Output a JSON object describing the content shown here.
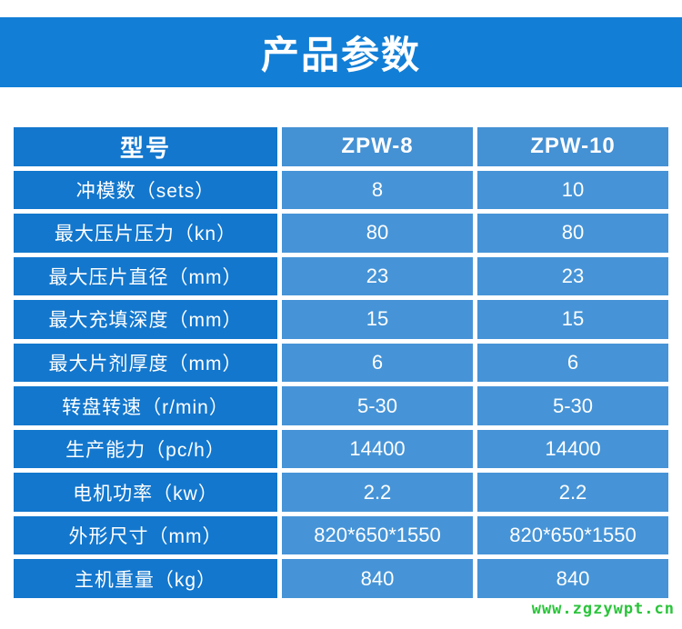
{
  "header": {
    "title": "产品参数",
    "banner_color": "#127ED6"
  },
  "table": {
    "header": {
      "model_label": "型号",
      "columns": [
        "ZPW-8",
        "ZPW-10"
      ]
    },
    "rows": [
      {
        "label": "冲模数（sets）",
        "values": [
          "8",
          "10"
        ]
      },
      {
        "label": "最大压片压力（kn）",
        "values": [
          "80",
          "80"
        ]
      },
      {
        "label": "最大压片直径（mm）",
        "values": [
          "23",
          "23"
        ]
      },
      {
        "label": "最大充填深度（mm）",
        "values": [
          "15",
          "15"
        ]
      },
      {
        "label": "最大片剂厚度（mm）",
        "values": [
          "6",
          "6"
        ]
      },
      {
        "label": "转盘转速（r/min）",
        "values": [
          "5-30",
          "5-30"
        ]
      },
      {
        "label": "生产能力（pc/h）",
        "values": [
          "14400",
          "14400"
        ]
      },
      {
        "label": "电机功率（kw）",
        "values": [
          "2.2",
          "2.2"
        ]
      },
      {
        "label": "外形尺寸（mm）",
        "values": [
          "820*650*1550",
          "820*650*1550"
        ]
      },
      {
        "label": "主机重量（kg）",
        "values": [
          "840",
          "840"
        ]
      }
    ],
    "colors": {
      "label_cell": "#1377CD",
      "value_cell": "#4694D7",
      "header_value_cell": "#4491D4",
      "divider": "#FFFFFF",
      "text": "#FFFFFF"
    }
  },
  "footer": {
    "watermark": "www.zgzywpt.cn",
    "watermark_color": "#2BC43B"
  }
}
